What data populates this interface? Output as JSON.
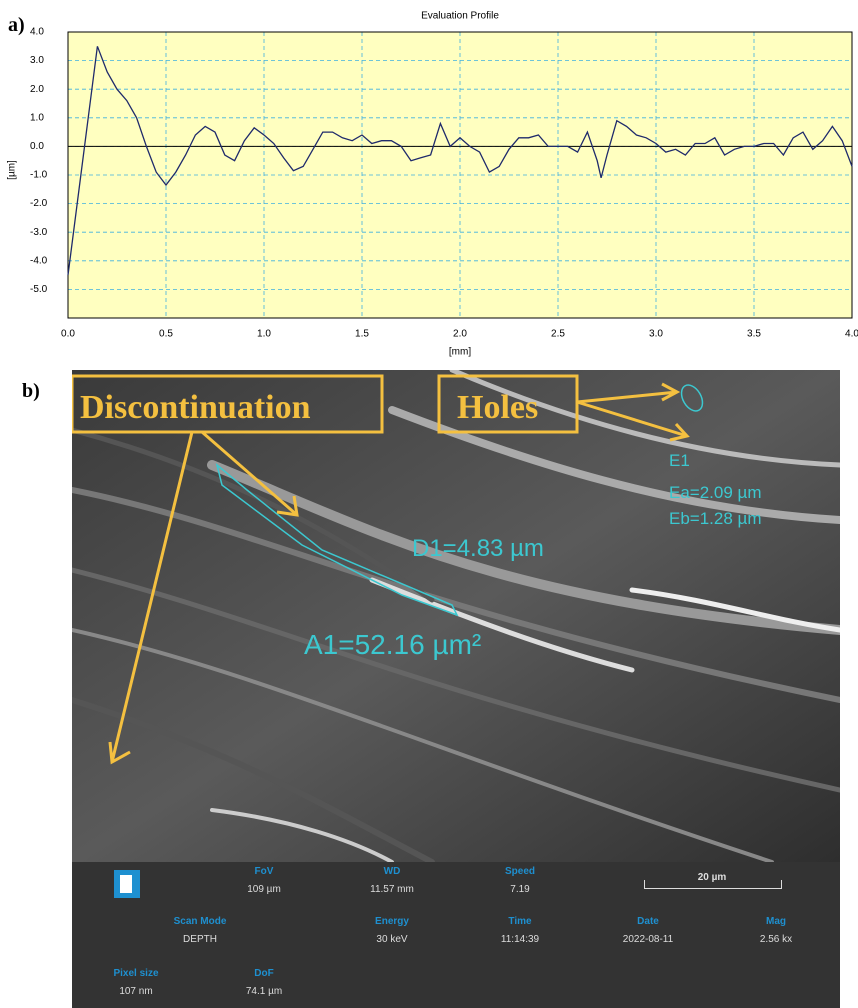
{
  "panel_labels": [
    "a)",
    "b)"
  ],
  "chart_data": {
    "type": "line",
    "title": "Evaluation Profile",
    "x_label": "[mm]",
    "y_label": "[µm]",
    "color": "#1f2a6b",
    "grid": true,
    "zero_line": true,
    "xlim": [
      0,
      4
    ],
    "ylim": [
      -6,
      4
    ],
    "xticks": [
      {
        "value": 0,
        "label": "0.0"
      },
      0.5,
      {
        "value": 1,
        "label": "1.0"
      },
      1.5,
      {
        "value": 2,
        "label": "2.0"
      },
      2.5,
      {
        "value": 3,
        "label": "3.0"
      },
      3.5,
      {
        "value": 4,
        "label": "4.0"
      }
    ],
    "yticks": [
      {
        "value": -5,
        "label": "-5.0"
      },
      {
        "value": -4,
        "label": "-4.0"
      },
      {
        "value": -3,
        "label": "-3.0"
      },
      {
        "value": -2,
        "label": "-2.0"
      },
      {
        "value": -1,
        "label": "-1.0"
      },
      {
        "value": 0,
        "label": "0.0"
      },
      {
        "value": 1,
        "label": "1.0"
      },
      {
        "value": 2,
        "label": "2.0"
      },
      {
        "value": 3,
        "label": "3.0"
      },
      {
        "value": 4,
        "label": "4.0"
      }
    ],
    "x": [
      0,
      0.15,
      0.2,
      0.25,
      0.3,
      0.35,
      0.4,
      0.45,
      0.5,
      0.55,
      0.6,
      0.65,
      0.7,
      0.75,
      0.8,
      0.85,
      0.9,
      0.95,
      1.0,
      1.05,
      1.1,
      1.15,
      1.2,
      1.25,
      1.3,
      1.35,
      1.4,
      1.45,
      1.5,
      1.55,
      1.6,
      1.65,
      1.7,
      1.75,
      1.8,
      1.85,
      1.9,
      1.95,
      2.0,
      2.05,
      2.1,
      2.15,
      2.2,
      2.25,
      2.3,
      2.35,
      2.4,
      2.45,
      2.5,
      2.55,
      2.6,
      2.65,
      2.7,
      2.72,
      2.75,
      2.8,
      2.85,
      2.9,
      2.95,
      3.0,
      3.05,
      3.1,
      3.15,
      3.2,
      3.25,
      3.3,
      3.35,
      3.4,
      3.45,
      3.5,
      3.55,
      3.6,
      3.65,
      3.7,
      3.75,
      3.8,
      3.85,
      3.9,
      3.95,
      4.0
    ],
    "values": [
      -4.5,
      3.5,
      2.6,
      2.0,
      1.6,
      1.0,
      0.0,
      -0.9,
      -1.35,
      -0.9,
      -0.3,
      0.4,
      0.7,
      0.5,
      -0.3,
      -0.5,
      0.2,
      0.65,
      0.4,
      0.1,
      -0.4,
      -0.85,
      -0.7,
      -0.1,
      0.5,
      0.5,
      0.3,
      0.2,
      0.4,
      0.1,
      0.2,
      0.2,
      0.0,
      -0.5,
      -0.4,
      -0.3,
      0.8,
      0.0,
      0.3,
      0.0,
      -0.2,
      -0.9,
      -0.7,
      -0.1,
      0.3,
      0.3,
      0.4,
      0.0,
      0.0,
      0.0,
      -0.2,
      0.5,
      -0.5,
      -1.1,
      -0.3,
      0.9,
      0.7,
      0.4,
      0.3,
      0.1,
      -0.2,
      -0.1,
      -0.3,
      0.1,
      0.1,
      0.3,
      -0.3,
      -0.1,
      0.0,
      0.0,
      0.1,
      0.1,
      -0.3,
      0.3,
      0.5,
      -0.1,
      0.2,
      0.7,
      0.2,
      -0.7
    ]
  },
  "annotations": {
    "discontinuation": "Discontinuation",
    "holes": "Holes",
    "e1": "E1",
    "ea": "Ea=2.09 µm",
    "eb": "Eb=1.28 µm",
    "d1": "D1=4.83 µm",
    "a1": "A1=52.16 µm²"
  },
  "info": {
    "fov_label": "FoV",
    "fov": "109 µm",
    "wd_label": "WD",
    "wd": "11.57 mm",
    "speed_label": "Speed",
    "speed": "7.19",
    "scale": "20 µm",
    "scan_label": "Scan Mode",
    "scan": "DEPTH",
    "energy_label": "Energy",
    "energy": "30 keV",
    "time_label": "Time",
    "time": "11:14:39",
    "date_label": "Date",
    "date": "2022-08-11",
    "mag_label": "Mag",
    "mag": "2.56 kx",
    "pixel_label": "Pixel size",
    "pixel": "107 nm",
    "dof_label": "DoF",
    "dof": "74.1 µm"
  }
}
